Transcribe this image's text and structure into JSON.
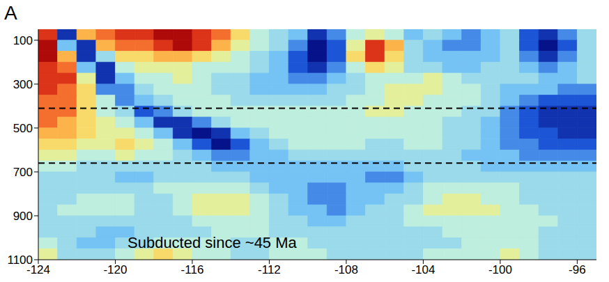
{
  "chart_data": {
    "type": "heatmap",
    "panel_label": "A",
    "annotations": [
      "Subducted since ~45 Ma"
    ],
    "xlim": [
      -124,
      -95
    ],
    "xticks": [
      -124,
      -120,
      -116,
      -112,
      -108,
      -104,
      -100,
      -96
    ],
    "ylim": [
      50,
      1100
    ],
    "yticks": [
      100,
      300,
      500,
      700,
      900,
      1100
    ],
    "dashed_lines": [
      410,
      660
    ],
    "color_range": [
      -3,
      3
    ],
    "cell_x": [
      -123.5,
      -122.5,
      -121.5,
      -120.5,
      -119.5,
      -118.5,
      -117.5,
      -116.5,
      -115.5,
      -114.5,
      -113.5,
      -112.5,
      -111.5,
      -110.5,
      -109.5,
      -108.5,
      -107.5,
      -106.5,
      -105.5,
      -104.5,
      -103.5,
      -102.5,
      -101.5,
      -100.5,
      -99.5,
      -98.5,
      -97.5,
      -96.5,
      -95.5
    ],
    "cell_y": [
      75,
      125,
      175,
      225,
      275,
      325,
      375,
      425,
      475,
      525,
      575,
      625,
      675,
      725,
      775,
      825,
      875,
      925,
      975,
      1025,
      1075
    ],
    "cells": [
      [
        -2.5,
        2.5,
        -1.5,
        -2,
        -2.5,
        -2.5,
        -3,
        -3,
        -2.5,
        -2,
        -1,
        0,
        0.5,
        1,
        2.5,
        1.5,
        0,
        -0.5,
        0,
        1,
        0.5,
        1,
        1.5,
        1,
        0.5,
        2,
        2.5,
        1.5,
        0.5
      ],
      [
        -3,
        1,
        2.5,
        -1.5,
        -2,
        -2,
        -2.5,
        -3,
        -2.5,
        -1.5,
        -0.5,
        0,
        0.5,
        1.5,
        3,
        2,
        -0.5,
        -2.5,
        -1.5,
        0.5,
        1,
        1.5,
        1.5,
        1,
        0.5,
        2,
        3,
        2,
        0.5
      ],
      [
        -3,
        -1.5,
        2.5,
        0.5,
        -1,
        -1,
        -1.5,
        -1.5,
        -1,
        -0.5,
        0,
        0.5,
        1,
        2,
        3,
        2,
        -1,
        -2.5,
        -1,
        0.5,
        1,
        1,
        1,
        1,
        0.5,
        1.5,
        2.5,
        1.5,
        0.5
      ],
      [
        -2.5,
        -2,
        1,
        2.5,
        0,
        -0.5,
        -0.5,
        -0.5,
        0,
        0,
        0,
        0.5,
        1,
        2,
        2.5,
        1.5,
        0,
        -1,
        -0.5,
        0.5,
        0.5,
        1,
        1,
        0.5,
        0.5,
        1,
        1.5,
        1,
        0.5
      ],
      [
        -2.5,
        -2.5,
        -0.5,
        2.5,
        1,
        0,
        0,
        -0.5,
        0,
        0.5,
        0.5,
        1,
        1,
        1.5,
        1.5,
        1,
        0.5,
        0,
        0,
        0,
        -0.5,
        0,
        0.5,
        0.5,
        0.5,
        0.5,
        1,
        1,
        0.5
      ],
      [
        -2.5,
        -2,
        -1,
        1.5,
        1.5,
        0.5,
        0,
        0,
        0,
        0.5,
        0.5,
        1,
        1,
        1,
        1,
        0.5,
        0.5,
        0,
        -0.5,
        -0.5,
        -0.5,
        0,
        0,
        0.5,
        1,
        1,
        1,
        1.5,
        1.5
      ],
      [
        -2,
        -2,
        -1,
        0,
        1.5,
        1,
        0.5,
        0,
        0,
        0,
        0.5,
        0.5,
        0.5,
        0.5,
        0.5,
        0.5,
        0,
        0,
        -0.5,
        -0.5,
        0,
        0,
        0,
        0.5,
        1,
        1.5,
        2,
        2,
        2
      ],
      [
        -2,
        -2,
        -1,
        0,
        0.5,
        2,
        1.5,
        0.5,
        0,
        0,
        0,
        0,
        0,
        0,
        0,
        0,
        0,
        -0.5,
        -0.5,
        0,
        0,
        0,
        0.5,
        0.5,
        1.5,
        2,
        2.5,
        2.5,
        2.5
      ],
      [
        -2,
        -1.5,
        -1,
        -0.5,
        0,
        1,
        2.5,
        2.5,
        1.5,
        0.5,
        0,
        0,
        0,
        0,
        0,
        0,
        0,
        0,
        0,
        0,
        0,
        0.5,
        0.5,
        1,
        1.5,
        2,
        2.5,
        2.5,
        2.5
      ],
      [
        -1.5,
        -1.5,
        -1,
        -0.5,
        -0.5,
        0,
        1,
        2.5,
        3,
        2.5,
        1,
        0.5,
        0,
        0,
        0,
        0,
        0,
        0,
        0,
        0,
        0,
        0.5,
        0.5,
        1,
        1.5,
        2,
        2,
        2.5,
        2.5
      ],
      [
        -1,
        -1,
        -0.5,
        -0.5,
        -1,
        -0.5,
        0,
        1,
        2,
        3,
        2,
        1,
        0.5,
        0,
        0,
        0,
        0,
        0.5,
        0.5,
        0,
        0,
        0.5,
        0.5,
        1,
        1.5,
        1.5,
        2,
        2,
        2
      ],
      [
        -0.5,
        -0.5,
        0,
        0,
        -0.5,
        0,
        0,
        0.5,
        1,
        1.5,
        1.5,
        1,
        1,
        0.5,
        0.5,
        0.5,
        0.5,
        0.5,
        0.5,
        0.5,
        0.5,
        0.5,
        1,
        1,
        1,
        1.5,
        1.5,
        1.5,
        1.5
      ],
      [
        0,
        0,
        0.5,
        0.5,
        0.5,
        0.5,
        0.5,
        0.5,
        0.5,
        1,
        1,
        1,
        1,
        1,
        1,
        1,
        1,
        1,
        1,
        0.5,
        0.5,
        0.5,
        0.5,
        1,
        1,
        1,
        1,
        1,
        1
      ],
      [
        0.5,
        0.5,
        0.5,
        0.5,
        1,
        1,
        0.5,
        0.5,
        0.5,
        0.5,
        0.5,
        1,
        1,
        1,
        1,
        1,
        1,
        1.5,
        1.5,
        1,
        0.5,
        0.5,
        0.5,
        0.5,
        0.5,
        0.5,
        0.5,
        0.5,
        0.5
      ],
      [
        0.5,
        0.5,
        0.5,
        0.5,
        0.5,
        0.5,
        0,
        0,
        0,
        0,
        0,
        0.5,
        1,
        1,
        1.5,
        1.5,
        1,
        1,
        1,
        0.5,
        0,
        0,
        0,
        0,
        0,
        0.5,
        0.5,
        0.5,
        0.5
      ],
      [
        0.5,
        0.5,
        0,
        0,
        0,
        0.5,
        0.5,
        0,
        -0.5,
        -0.5,
        -0.5,
        0,
        0.5,
        1,
        1.5,
        1.5,
        1,
        1,
        0.5,
        0.5,
        0,
        -0.5,
        -0.5,
        0,
        0,
        0.5,
        0.5,
        0.5,
        0.5
      ],
      [
        0.5,
        0,
        0,
        0,
        0,
        0.5,
        0.5,
        0,
        -0.5,
        -0.5,
        -0.5,
        0,
        0.5,
        1,
        1,
        1.5,
        1,
        0.5,
        0.5,
        0,
        -0.5,
        -0.5,
        -0.5,
        -0.5,
        0,
        0,
        0.5,
        0.5,
        0.5
      ],
      [
        0.5,
        0.5,
        0.5,
        0.5,
        0.5,
        0.5,
        0.5,
        0.5,
        0,
        0,
        0,
        0,
        0.5,
        0.5,
        1,
        1,
        0.5,
        0.5,
        0.5,
        0,
        0,
        0,
        0,
        0,
        0,
        0,
        0,
        0.5,
        0.5
      ],
      [
        0.5,
        0.5,
        0.5,
        1,
        1,
        0.5,
        0.5,
        0.5,
        0.5,
        0,
        0,
        0,
        0.5,
        0.5,
        0.5,
        0.5,
        0.5,
        0.5,
        0.5,
        0.5,
        0.5,
        0,
        0,
        0,
        0,
        0,
        0.5,
        0.5,
        0.5
      ],
      [
        0,
        0.5,
        1,
        1,
        0.5,
        0.5,
        0,
        0,
        0,
        0,
        0.5,
        0.5,
        0,
        0,
        0.5,
        0.5,
        0.5,
        0.5,
        0.5,
        0.5,
        0.5,
        0.5,
        0,
        0,
        0,
        0,
        0.5,
        0.5,
        0.5
      ],
      [
        -0.5,
        0.5,
        0.5,
        0.5,
        0,
        -0.5,
        -1,
        -0.5,
        0,
        0,
        0.5,
        0.5,
        0,
        0,
        0,
        0.5,
        0.5,
        0.5,
        0.5,
        0.5,
        0,
        0,
        0,
        0,
        -0.5,
        0,
        0.5,
        0.5,
        0.5
      ]
    ]
  }
}
